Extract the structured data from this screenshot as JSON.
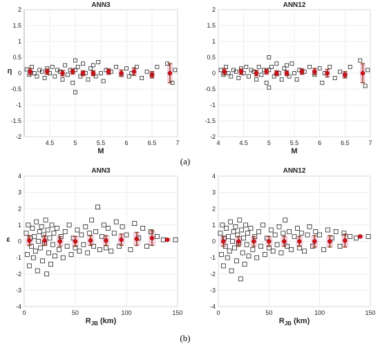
{
  "figure": {
    "panel_labels": [
      "(a)",
      "(b)"
    ],
    "colors": {
      "marker_edge": "#000000",
      "mean_dot": "#d0101a",
      "error_bar": "#8a3a1a",
      "band": "#f7c8d8",
      "grid": "#e6e6e6"
    }
  },
  "chart_data": [
    {
      "type": "scatter",
      "title": "ANN3",
      "xlabel": "M",
      "ylabel": "η",
      "xlim": [
        4,
        7
      ],
      "ylim": [
        -2,
        2
      ],
      "xticks": [
        "4.5",
        "5",
        "5.5",
        "6",
        "6.5",
        "7"
      ],
      "yticks": [
        "-2",
        "-1.5",
        "-1",
        "-0.5",
        "0",
        "0.5",
        "1",
        "1.5",
        "2"
      ],
      "xtick_values": [
        4.5,
        5,
        5.5,
        6,
        6.5,
        7
      ],
      "ytick_values": [
        -2,
        -1.5,
        -1,
        -0.5,
        0,
        0.5,
        1,
        1.5,
        2
      ],
      "grid": true,
      "points": [
        [
          4.05,
          0.12
        ],
        [
          4.1,
          -0.05
        ],
        [
          4.15,
          0.2
        ],
        [
          4.2,
          0.0
        ],
        [
          4.25,
          -0.1
        ],
        [
          4.3,
          0.1
        ],
        [
          4.35,
          0.05
        ],
        [
          4.4,
          -0.15
        ],
        [
          4.45,
          0.15
        ],
        [
          4.5,
          0.0
        ],
        [
          4.55,
          0.2
        ],
        [
          4.6,
          -0.1
        ],
        [
          4.65,
          0.1
        ],
        [
          4.7,
          0.05
        ],
        [
          4.75,
          -0.2
        ],
        [
          4.8,
          0.25
        ],
        [
          4.85,
          -0.05
        ],
        [
          4.9,
          0.1
        ],
        [
          4.95,
          -0.3
        ],
        [
          5.0,
          0.4
        ],
        [
          5.0,
          -0.6
        ],
        [
          5.0,
          0.1
        ],
        [
          5.05,
          0.2
        ],
        [
          5.1,
          -0.1
        ],
        [
          5.15,
          0.3
        ],
        [
          5.2,
          0.0
        ],
        [
          5.25,
          -0.2
        ],
        [
          5.3,
          0.15
        ],
        [
          5.35,
          0.25
        ],
        [
          5.4,
          -0.1
        ],
        [
          5.45,
          0.35
        ],
        [
          5.5,
          0.0
        ],
        [
          5.55,
          -0.25
        ],
        [
          5.6,
          0.1
        ],
        [
          5.7,
          0.05
        ],
        [
          5.8,
          0.2
        ],
        [
          5.9,
          -0.05
        ],
        [
          6.0,
          0.15
        ],
        [
          6.05,
          -0.1
        ],
        [
          6.1,
          0.0
        ],
        [
          6.2,
          0.2
        ],
        [
          6.3,
          -0.15
        ],
        [
          6.4,
          0.05
        ],
        [
          6.5,
          -0.05
        ],
        [
          6.6,
          0.2
        ],
        [
          6.8,
          0.3
        ],
        [
          6.9,
          -0.3
        ],
        [
          6.95,
          0.1
        ]
      ],
      "binned_means": [
        [
          4.12,
          0.05
        ],
        [
          4.45,
          0.05
        ],
        [
          4.75,
          0.0
        ],
        [
          4.95,
          0.05
        ],
        [
          5.15,
          0.0
        ],
        [
          5.35,
          0.0
        ],
        [
          5.65,
          0.05
        ],
        [
          5.9,
          0.0
        ],
        [
          6.15,
          0.05
        ],
        [
          6.5,
          -0.05
        ],
        [
          6.85,
          0.0
        ]
      ],
      "error_half_width": [
        0.1,
        0.08,
        0.08,
        0.07,
        0.07,
        0.07,
        0.08,
        0.1,
        0.12,
        0.1,
        0.3
      ]
    },
    {
      "type": "scatter",
      "title": "ANN12",
      "xlabel": "M",
      "ylabel": "",
      "xlim": [
        4,
        7
      ],
      "ylim": [
        -2,
        2
      ],
      "xticks": [
        "4",
        "4.5",
        "5",
        "5.5",
        "6",
        "6.5",
        "7"
      ],
      "yticks": [
        "-2",
        "-1.5",
        "-1",
        "-0.5",
        "0",
        "0.5",
        "1",
        "1.5",
        "2"
      ],
      "xtick_values": [
        4,
        4.5,
        5,
        5.5,
        6,
        6.5,
        7
      ],
      "ytick_values": [
        -2,
        -1.5,
        -1,
        -0.5,
        0,
        0.5,
        1,
        1.5,
        2
      ],
      "grid": true,
      "points": [
        [
          4.05,
          0.1
        ],
        [
          4.1,
          -0.05
        ],
        [
          4.15,
          0.2
        ],
        [
          4.2,
          0.0
        ],
        [
          4.25,
          -0.1
        ],
        [
          4.3,
          0.1
        ],
        [
          4.35,
          0.05
        ],
        [
          4.4,
          -0.15
        ],
        [
          4.45,
          0.15
        ],
        [
          4.5,
          0.0
        ],
        [
          4.55,
          0.2
        ],
        [
          4.6,
          -0.1
        ],
        [
          4.65,
          0.1
        ],
        [
          4.7,
          0.05
        ],
        [
          4.75,
          -0.2
        ],
        [
          4.8,
          0.2
        ],
        [
          4.85,
          -0.05
        ],
        [
          4.9,
          0.1
        ],
        [
          4.95,
          -0.3
        ],
        [
          5.0,
          0.5
        ],
        [
          5.0,
          -0.45
        ],
        [
          5.0,
          0.1
        ],
        [
          5.05,
          0.2
        ],
        [
          5.1,
          -0.1
        ],
        [
          5.15,
          0.3
        ],
        [
          5.2,
          0.0
        ],
        [
          5.25,
          -0.2
        ],
        [
          5.3,
          0.15
        ],
        [
          5.35,
          0.25
        ],
        [
          5.4,
          -0.1
        ],
        [
          5.45,
          0.3
        ],
        [
          5.5,
          0.0
        ],
        [
          5.55,
          -0.2
        ],
        [
          5.6,
          0.1
        ],
        [
          5.7,
          0.05
        ],
        [
          5.8,
          0.2
        ],
        [
          5.9,
          -0.05
        ],
        [
          6.0,
          0.15
        ],
        [
          6.05,
          -0.3
        ],
        [
          6.1,
          0.0
        ],
        [
          6.2,
          0.2
        ],
        [
          6.3,
          -0.15
        ],
        [
          6.4,
          0.05
        ],
        [
          6.5,
          -0.05
        ],
        [
          6.6,
          0.2
        ],
        [
          6.8,
          0.4
        ],
        [
          6.9,
          -0.4
        ],
        [
          6.95,
          0.1
        ]
      ],
      "binned_means": [
        [
          4.12,
          0.05
        ],
        [
          4.45,
          0.05
        ],
        [
          4.75,
          0.0
        ],
        [
          4.95,
          0.05
        ],
        [
          5.15,
          0.0
        ],
        [
          5.35,
          0.0
        ],
        [
          5.65,
          0.05
        ],
        [
          5.9,
          0.05
        ],
        [
          6.15,
          0.0
        ],
        [
          6.5,
          -0.05
        ],
        [
          6.85,
          0.0
        ]
      ],
      "error_half_width": [
        0.1,
        0.08,
        0.08,
        0.07,
        0.07,
        0.07,
        0.08,
        0.1,
        0.12,
        0.1,
        0.3
      ]
    },
    {
      "type": "scatter",
      "title": "ANN3",
      "xlabel": "R",
      "xlabel_sub": "JB",
      "xlabel_unit": " (km)",
      "ylabel": "ε",
      "xlim": [
        0,
        150
      ],
      "ylim": [
        -4,
        4
      ],
      "xticks": [
        "0",
        "50",
        "100",
        "150"
      ],
      "yticks": [
        "-4",
        "-3",
        "-2",
        "-1",
        "0",
        "1",
        "2",
        "3",
        "4"
      ],
      "xtick_values": [
        0,
        50,
        100,
        150
      ],
      "ytick_values": [
        -4,
        -3,
        -2,
        -1,
        0,
        1,
        2,
        3,
        4
      ],
      "grid": true,
      "points": [
        [
          2,
          0.5
        ],
        [
          3,
          -0.8
        ],
        [
          4,
          1.0
        ],
        [
          5,
          -1.5
        ],
        [
          6,
          0.2
        ],
        [
          7,
          -0.3
        ],
        [
          8,
          0.8
        ],
        [
          9,
          -1.0
        ],
        [
          10,
          0.3
        ],
        [
          11,
          -0.6
        ],
        [
          12,
          1.2
        ],
        [
          13,
          -1.8
        ],
        [
          14,
          0.0
        ],
        [
          15,
          0.6
        ],
        [
          16,
          -0.4
        ],
        [
          17,
          0.9
        ],
        [
          18,
          -1.2
        ],
        [
          19,
          0.4
        ],
        [
          20,
          -0.1
        ],
        [
          21,
          1.3
        ],
        [
          22,
          -2.0
        ],
        [
          23,
          0.7
        ],
        [
          24,
          -0.7
        ],
        [
          25,
          0.2
        ],
        [
          26,
          -1.4
        ],
        [
          27,
          1.0
        ],
        [
          28,
          -0.2
        ],
        [
          29,
          0.5
        ],
        [
          30,
          -0.9
        ],
        [
          32,
          0.8
        ],
        [
          34,
          -0.5
        ],
        [
          36,
          0.3
        ],
        [
          38,
          -1.0
        ],
        [
          40,
          0.6
        ],
        [
          42,
          -0.3
        ],
        [
          44,
          1.0
        ],
        [
          46,
          -0.8
        ],
        [
          48,
          0.2
        ],
        [
          50,
          -0.4
        ],
        [
          52,
          0.7
        ],
        [
          54,
          -0.6
        ],
        [
          56,
          0.4
        ],
        [
          58,
          -0.2
        ],
        [
          60,
          0.9
        ],
        [
          62,
          -0.7
        ],
        [
          64,
          0.5
        ],
        [
          66,
          1.3
        ],
        [
          68,
          -0.3
        ],
        [
          70,
          0.6
        ],
        [
          72,
          2.1
        ],
        [
          74,
          -0.5
        ],
        [
          76,
          0.3
        ],
        [
          78,
          1.0
        ],
        [
          80,
          -0.4
        ],
        [
          82,
          0.8
        ],
        [
          85,
          -0.6
        ],
        [
          88,
          0.5
        ],
        [
          90,
          1.2
        ],
        [
          93,
          -0.3
        ],
        [
          96,
          0.9
        ],
        [
          100,
          0.4
        ],
        [
          104,
          -0.5
        ],
        [
          108,
          1.1
        ],
        [
          112,
          0.2
        ],
        [
          116,
          0.8
        ],
        [
          120,
          -0.3
        ],
        [
          124,
          0.6
        ],
        [
          130,
          0.3
        ],
        [
          136,
          0.1
        ],
        [
          148,
          0.1
        ]
      ],
      "binned_means": [
        [
          5,
          0.05
        ],
        [
          20,
          0.05
        ],
        [
          35,
          0.0
        ],
        [
          50,
          0.0
        ],
        [
          65,
          0.05
        ],
        [
          80,
          0.05
        ],
        [
          95,
          0.1
        ],
        [
          110,
          0.15
        ],
        [
          125,
          0.2
        ],
        [
          140,
          0.1
        ]
      ],
      "error_half_width": [
        0.3,
        0.3,
        0.3,
        0.3,
        0.3,
        0.3,
        0.35,
        0.4,
        0.45,
        0.0
      ]
    },
    {
      "type": "scatter",
      "title": "ANN12",
      "xlabel": "R",
      "xlabel_sub": "JB",
      "xlabel_unit": " (km)",
      "ylabel": "",
      "xlim": [
        0,
        150
      ],
      "ylim": [
        -4,
        4
      ],
      "xticks": [
        "0",
        "50",
        "100",
        "150"
      ],
      "yticks": [
        "-4",
        "-3",
        "-2",
        "-1",
        "0",
        "1",
        "2",
        "3",
        "4"
      ],
      "xtick_values": [
        0,
        50,
        100,
        150
      ],
      "ytick_values": [
        -4,
        -3,
        -2,
        -1,
        0,
        1,
        2,
        3,
        4
      ],
      "grid": true,
      "points": [
        [
          2,
          0.5
        ],
        [
          3,
          -0.8
        ],
        [
          4,
          1.0
        ],
        [
          5,
          -1.5
        ],
        [
          6,
          0.2
        ],
        [
          7,
          -0.3
        ],
        [
          8,
          0.8
        ],
        [
          9,
          -1.0
        ],
        [
          10,
          0.3
        ],
        [
          11,
          -0.6
        ],
        [
          12,
          1.2
        ],
        [
          13,
          -1.8
        ],
        [
          14,
          0.0
        ],
        [
          15,
          0.6
        ],
        [
          16,
          -0.4
        ],
        [
          17,
          0.9
        ],
        [
          18,
          -1.2
        ],
        [
          19,
          0.4
        ],
        [
          20,
          -0.1
        ],
        [
          21,
          1.3
        ],
        [
          22,
          -2.3
        ],
        [
          23,
          0.7
        ],
        [
          24,
          -0.7
        ],
        [
          25,
          0.2
        ],
        [
          26,
          -1.4
        ],
        [
          27,
          1.0
        ],
        [
          28,
          -0.2
        ],
        [
          29,
          0.5
        ],
        [
          30,
          -0.9
        ],
        [
          32,
          0.8
        ],
        [
          34,
          -0.5
        ],
        [
          36,
          0.3
        ],
        [
          38,
          -1.0
        ],
        [
          40,
          0.6
        ],
        [
          42,
          -0.3
        ],
        [
          44,
          1.0
        ],
        [
          46,
          -0.8
        ],
        [
          48,
          0.2
        ],
        [
          50,
          -0.4
        ],
        [
          52,
          0.7
        ],
        [
          54,
          -0.6
        ],
        [
          56,
          0.4
        ],
        [
          58,
          -0.2
        ],
        [
          60,
          0.9
        ],
        [
          62,
          -0.7
        ],
        [
          64,
          0.5
        ],
        [
          66,
          1.3
        ],
        [
          68,
          -0.3
        ],
        [
          70,
          0.6
        ],
        [
          72,
          -0.5
        ],
        [
          75,
          0.3
        ],
        [
          78,
          0.8
        ],
        [
          80,
          -0.4
        ],
        [
          82,
          0.5
        ],
        [
          85,
          -0.6
        ],
        [
          88,
          0.4
        ],
        [
          90,
          0.9
        ],
        [
          93,
          -0.3
        ],
        [
          96,
          0.6
        ],
        [
          100,
          0.4
        ],
        [
          104,
          -0.5
        ],
        [
          108,
          0.7
        ],
        [
          112,
          0.2
        ],
        [
          116,
          0.6
        ],
        [
          120,
          -0.3
        ],
        [
          124,
          0.5
        ],
        [
          130,
          0.3
        ],
        [
          136,
          0.2
        ],
        [
          148,
          0.3
        ]
      ],
      "binned_means": [
        [
          5,
          0.0
        ],
        [
          20,
          0.0
        ],
        [
          35,
          0.0
        ],
        [
          50,
          0.0
        ],
        [
          65,
          0.0
        ],
        [
          80,
          0.0
        ],
        [
          95,
          0.0
        ],
        [
          110,
          0.0
        ],
        [
          125,
          0.05
        ],
        [
          140,
          0.3
        ]
      ],
      "error_half_width": [
        0.3,
        0.3,
        0.3,
        0.3,
        0.3,
        0.3,
        0.35,
        0.35,
        0.4,
        0.0
      ]
    }
  ]
}
